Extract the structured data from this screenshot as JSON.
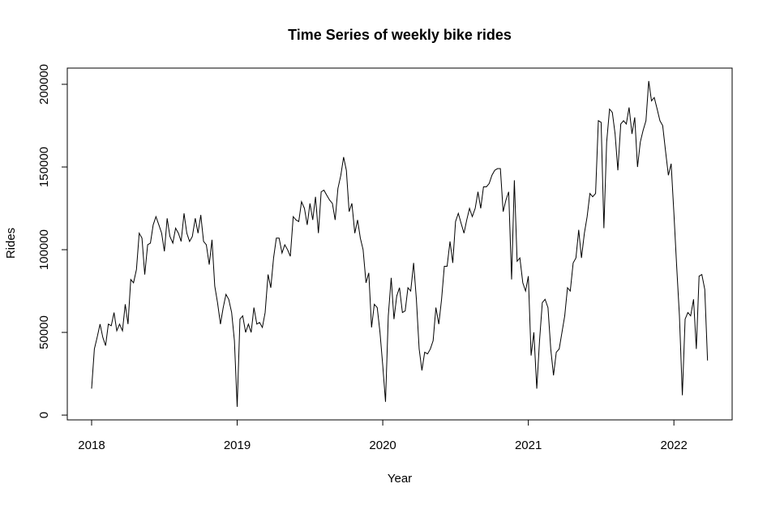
{
  "chart_data": {
    "type": "line",
    "title": "Time Series of weekly bike rides",
    "x_label": "Year",
    "y_label": "Rides",
    "xlim": [
      2017.833,
      2022.4
    ],
    "ylim": [
      -2900,
      209800
    ],
    "xticks": [
      2018,
      2019,
      2020,
      2021,
      2022
    ],
    "yticks": [
      0,
      50000,
      100000,
      150000,
      200000
    ],
    "x": [
      2018,
      2018.019,
      2018.038,
      2018.058,
      2018.077,
      2018.096,
      2018.115,
      2018.135,
      2018.154,
      2018.173,
      2018.192,
      2018.212,
      2018.231,
      2018.25,
      2018.269,
      2018.288,
      2018.308,
      2018.327,
      2018.346,
      2018.365,
      2018.385,
      2018.404,
      2018.423,
      2018.442,
      2018.462,
      2018.481,
      2018.5,
      2018.519,
      2018.538,
      2018.558,
      2018.577,
      2018.596,
      2018.615,
      2018.635,
      2018.654,
      2018.673,
      2018.692,
      2018.712,
      2018.731,
      2018.75,
      2018.769,
      2018.788,
      2018.808,
      2018.827,
      2018.846,
      2018.865,
      2018.885,
      2018.904,
      2018.923,
      2018.942,
      2018.962,
      2018.981,
      2019,
      2019.019,
      2019.038,
      2019.058,
      2019.077,
      2019.096,
      2019.115,
      2019.135,
      2019.154,
      2019.173,
      2019.192,
      2019.212,
      2019.231,
      2019.25,
      2019.269,
      2019.288,
      2019.308,
      2019.327,
      2019.346,
      2019.365,
      2019.385,
      2019.404,
      2019.423,
      2019.442,
      2019.462,
      2019.481,
      2019.5,
      2019.519,
      2019.538,
      2019.558,
      2019.577,
      2019.596,
      2019.615,
      2019.635,
      2019.654,
      2019.673,
      2019.692,
      2019.712,
      2019.731,
      2019.75,
      2019.769,
      2019.788,
      2019.808,
      2019.827,
      2019.846,
      2019.865,
      2019.885,
      2019.904,
      2019.923,
      2019.942,
      2019.962,
      2019.981,
      2020,
      2020.019,
      2020.038,
      2020.058,
      2020.077,
      2020.096,
      2020.115,
      2020.135,
      2020.154,
      2020.173,
      2020.192,
      2020.212,
      2020.231,
      2020.25,
      2020.269,
      2020.288,
      2020.308,
      2020.327,
      2020.346,
      2020.365,
      2020.385,
      2020.404,
      2020.423,
      2020.442,
      2020.462,
      2020.481,
      2020.5,
      2020.519,
      2020.538,
      2020.558,
      2020.577,
      2020.596,
      2020.615,
      2020.635,
      2020.654,
      2020.673,
      2020.692,
      2020.712,
      2020.731,
      2020.75,
      2020.769,
      2020.788,
      2020.808,
      2020.827,
      2020.846,
      2020.865,
      2020.885,
      2020.904,
      2020.923,
      2020.942,
      2020.962,
      2020.981,
      2021,
      2021.019,
      2021.038,
      2021.058,
      2021.077,
      2021.096,
      2021.115,
      2021.135,
      2021.154,
      2021.173,
      2021.192,
      2021.212,
      2021.231,
      2021.25,
      2021.269,
      2021.288,
      2021.308,
      2021.327,
      2021.346,
      2021.365,
      2021.385,
      2021.404,
      2021.423,
      2021.442,
      2021.462,
      2021.481,
      2021.5,
      2021.519,
      2021.538,
      2021.558,
      2021.577,
      2021.596,
      2021.615,
      2021.635,
      2021.654,
      2021.673,
      2021.692,
      2021.712,
      2021.731,
      2021.75,
      2021.769,
      2021.788,
      2021.808,
      2021.827,
      2021.846,
      2021.865,
      2021.885,
      2021.904,
      2021.923,
      2021.942,
      2021.962,
      2021.981,
      2022,
      2022.019,
      2022.038,
      2022.058,
      2022.077,
      2022.096,
      2022.115,
      2022.135,
      2022.154,
      2022.173,
      2022.192,
      2022.212,
      2022.231
    ],
    "series": [
      {
        "name": "Rides",
        "color": "#000000",
        "values": [
          16000,
          40000,
          47000,
          55000,
          47000,
          42000,
          55000,
          54000,
          62000,
          51000,
          55000,
          51000,
          67000,
          55000,
          82000,
          80000,
          88000,
          110000,
          107000,
          85000,
          103000,
          104000,
          115000,
          120000,
          115000,
          110000,
          99000,
          119000,
          108000,
          104000,
          113000,
          110000,
          105000,
          122000,
          110000,
          105000,
          108000,
          119000,
          110000,
          121000,
          105000,
          103000,
          91000,
          106000,
          78000,
          68000,
          55000,
          65000,
          73000,
          70000,
          62000,
          45000,
          5000,
          58000,
          60000,
          50000,
          55000,
          50000,
          65000,
          55000,
          56000,
          53000,
          62000,
          85000,
          77000,
          95000,
          107000,
          107000,
          98000,
          103000,
          100000,
          96000,
          120000,
          118000,
          117000,
          129000,
          125000,
          115000,
          128000,
          118000,
          132000,
          110000,
          135000,
          136000,
          133000,
          130000,
          128000,
          118000,
          137000,
          145000,
          156000,
          148000,
          123000,
          128000,
          110000,
          118000,
          107000,
          100000,
          80000,
          86000,
          53000,
          67000,
          65000,
          50000,
          30000,
          8000,
          60000,
          83000,
          58000,
          72000,
          77000,
          62000,
          63000,
          77000,
          75000,
          92000,
          70000,
          40000,
          27000,
          38000,
          37000,
          40000,
          45000,
          65000,
          55000,
          70000,
          90000,
          90000,
          105000,
          92000,
          117000,
          122000,
          116000,
          110000,
          118000,
          125000,
          120000,
          125000,
          135000,
          125000,
          138000,
          138000,
          140000,
          145000,
          148000,
          149000,
          149000,
          123000,
          130000,
          135000,
          82000,
          142000,
          93000,
          95000,
          80000,
          75000,
          84000,
          36000,
          50000,
          16000,
          45000,
          68000,
          70000,
          65000,
          40000,
          24000,
          38000,
          40000,
          50000,
          60000,
          77000,
          75000,
          92000,
          95000,
          112000,
          95000,
          110000,
          120000,
          134000,
          132000,
          134000,
          178000,
          177000,
          113000,
          165000,
          185000,
          183000,
          170000,
          148000,
          176000,
          178000,
          176000,
          186000,
          170000,
          180000,
          150000,
          165000,
          172000,
          178000,
          202000,
          190000,
          192000,
          185000,
          178000,
          175000,
          160000,
          145000,
          152000,
          122000,
          90000,
          60000,
          12000,
          58000,
          62000,
          60000,
          70000,
          40000,
          84000,
          85000,
          76000,
          33000
        ]
      }
    ]
  }
}
